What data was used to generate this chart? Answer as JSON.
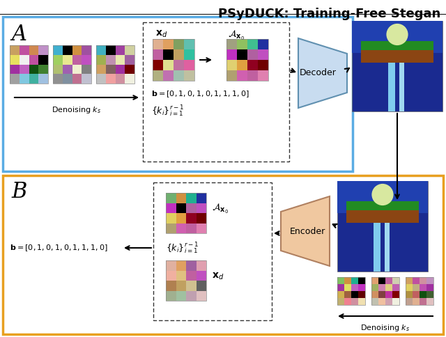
{
  "title": "PSyDUCK: Training-Free Stegan",
  "title_fontsize": 13,
  "panel_A_box_color": "#5AACE4",
  "panel_B_box_color": "#E8A020",
  "decoder_color_face": "#C8DCF0",
  "decoder_color_edge": "#6090b0",
  "encoder_color_face": "#F0C8A0",
  "encoder_color_edge": "#b08060",
  "denoising_label": "Denoising $k_s$",
  "bit_string": "$\\mathbf{b} = [0, 1, 0, 1, 0, 1, 1, 1, 0]$",
  "xd_label": "$\\mathbf{x}_d$",
  "Axo_label": "$\\mathcal{A}_{\\mathbf{x}_0}$",
  "ki_label_A": "$\\{k_i\\}_{i=1}^{r-1}$",
  "ki_label_B": "$\\{k_i\\}_{i=1}^{r-1}$",
  "grid1_A": [
    "#c8a060",
    "#c050a0",
    "#d08850",
    "#c090c8",
    "#e8e060",
    "#f0f0f0",
    "#c050a0",
    "#000000",
    "#a030a0",
    "#c060c0",
    "#105010",
    "#408030",
    "#a0a0a0",
    "#80c8e0",
    "#40b0a0",
    "#a0c0e0"
  ],
  "grid2_A": [
    "#40b0d0",
    "#000000",
    "#d09040",
    "#a050a0",
    "#a0d060",
    "#e8e890",
    "#c060a0",
    "#c050c0",
    "#b0c070",
    "#a060b0",
    "#f0f0d0",
    "#808080",
    "#909090",
    "#8090a0",
    "#c07090",
    "#c0c0d0"
  ],
  "grid3_A": [
    "#40b0c0",
    "#000000",
    "#a040a0",
    "#d0d0a0",
    "#a0b050",
    "#c090b0",
    "#e8e8b0",
    "#a060a0",
    "#d0a060",
    "#806060",
    "#a030a0",
    "#700000",
    "#c0c0c0",
    "#f0a0a0",
    "#d090a0",
    "#f0f0e0"
  ],
  "xd_grid_A": [
    "#e0b090",
    "#e0a060",
    "#80a060",
    "#60c0b0",
    "#c060a0",
    "#000000",
    "#c0a060",
    "#30c0a0",
    "#800000",
    "#e0e090",
    "#c070a0",
    "#e060a0",
    "#b0b080",
    "#c070b0",
    "#a0c0b0",
    "#c0c0a0"
  ],
  "axo_grid_A": [
    "#a0a080",
    "#90c060",
    "#40c090",
    "#2030a0",
    "#c030c0",
    "#000000",
    "#b060a0",
    "#c050c0",
    "#e0d070",
    "#e0a040",
    "#900020",
    "#700000",
    "#b0a070",
    "#d060b0",
    "#c060a0",
    "#e080b0"
  ],
  "axo_grid_B": [
    "#70b070",
    "#d09040",
    "#20b090",
    "#2030a0",
    "#c030c0",
    "#000000",
    "#b060a0",
    "#c050c0",
    "#e0d060",
    "#e0a040",
    "#900020",
    "#700000",
    "#b0a070",
    "#d060b0",
    "#c060a0",
    "#e080b0"
  ],
  "xd_grid_B": [
    "#e0b0a0",
    "#e0a060",
    "#a060a0",
    "#e0a0b0",
    "#f0b0a0",
    "#e0c080",
    "#c060a0",
    "#c050c0",
    "#b08050",
    "#c0a060",
    "#d0c090",
    "#606060",
    "#a0b090",
    "#a0c0a0",
    "#c0a0b0",
    "#e0c0c0"
  ],
  "bgrid1": [
    "#80c060",
    "#d09040",
    "#20b090",
    "#000000",
    "#a030a0",
    "#e0e060",
    "#c060c0",
    "#c030c0",
    "#d0b050",
    "#a06040",
    "#000000",
    "#600000",
    "#c0b070",
    "#f08090",
    "#d090a0",
    "#f0e0b0"
  ],
  "bgrid2": [
    "#e0a070",
    "#000000",
    "#c060a0",
    "#d0d0b0",
    "#a0b060",
    "#d080b0",
    "#e0d080",
    "#c060b0",
    "#d09060",
    "#804040",
    "#c030a0",
    "#800000",
    "#c0c0b0",
    "#f0c0a0",
    "#d0a0b0",
    "#f0f0e0"
  ],
  "bgrid3": [
    "#d0a060",
    "#c050a0",
    "#d090a0",
    "#c090c0",
    "#e0d060",
    "#c0b080",
    "#c050b0",
    "#a030a0",
    "#b09040",
    "#c06060",
    "#105010",
    "#406030",
    "#c0a090",
    "#e0b090",
    "#c07090",
    "#e0c0c0"
  ]
}
